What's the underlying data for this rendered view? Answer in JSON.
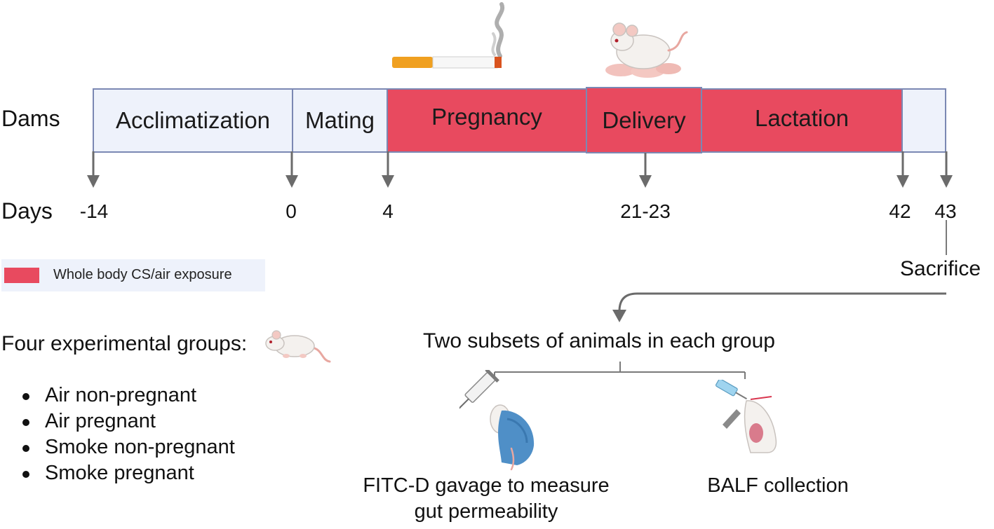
{
  "timeline": {
    "row_label": "Dams",
    "days_label": "Days",
    "phases": [
      {
        "label": "Acclimatization",
        "exposed": false
      },
      {
        "label": "Mating",
        "exposed": false
      },
      {
        "label": "Pregnancy",
        "exposed": true
      },
      {
        "label": "Delivery",
        "exposed": true
      },
      {
        "label": "Lactation",
        "exposed": true
      },
      {
        "label": "",
        "exposed": false
      }
    ],
    "day_ticks": [
      "-14",
      "0",
      "4",
      "21-23",
      "42",
      "43"
    ]
  },
  "legend": {
    "label": "Whole body CS/air exposure",
    "color": "#e84a5f"
  },
  "sacrifice": {
    "label": "Sacrifice"
  },
  "groups": {
    "title": "Four experimental groups:",
    "items": [
      "Air non-pregnant",
      "Air pregnant",
      "Smoke non-pregnant",
      "Smoke pregnant"
    ]
  },
  "subsets": {
    "title": "Two subsets of animals in each group",
    "left_label_line1": "FITC-D gavage to measure",
    "left_label_line2": "gut permeability",
    "right_label": "BALF collection"
  },
  "icons": [
    "cigarette-icon",
    "mouse-with-pups-icon",
    "mouse-icon",
    "gavage-syringe-icon",
    "balf-syringe-icon"
  ]
}
